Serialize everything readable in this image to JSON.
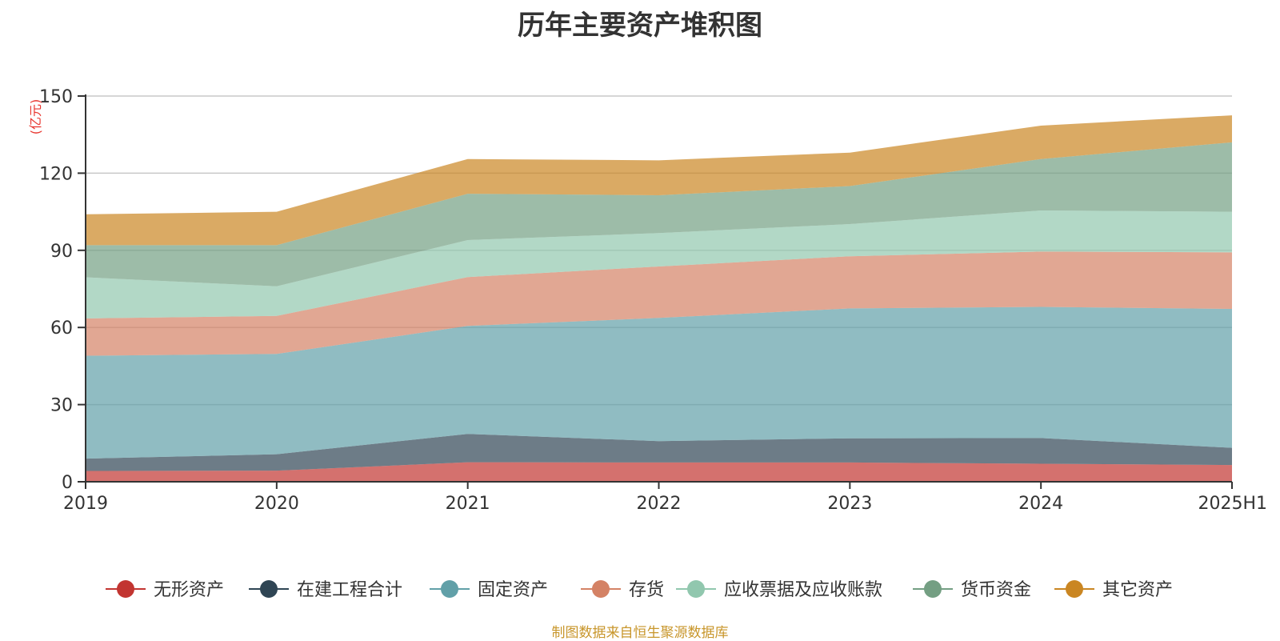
{
  "chart_data": {
    "type": "area",
    "stacked": true,
    "title": "历年主要资产堆积图",
    "ylabel": "(亿元)",
    "ylim": [
      0,
      150
    ],
    "yticks": [
      0,
      30,
      60,
      90,
      120,
      150
    ],
    "grid": true,
    "legend_position": "bottom",
    "categories": [
      "2019",
      "2020",
      "2021",
      "2022",
      "2023",
      "2024",
      "2025H1"
    ],
    "series": [
      {
        "name": "无形资产",
        "color": "#c23531",
        "values": [
          4.2,
          4.3,
          7.6,
          7.5,
          7.5,
          7.0,
          6.5
        ]
      },
      {
        "name": "在建工程合计",
        "color": "#2f4554",
        "values": [
          4.8,
          6.4,
          11.0,
          8.3,
          9.4,
          10.0,
          6.7
        ]
      },
      {
        "name": "固定资产",
        "color": "#61a0a8",
        "values": [
          40.0,
          39.0,
          42.0,
          47.9,
          50.5,
          51.0,
          54.0
        ]
      },
      {
        "name": "存货",
        "color": "#d48265",
        "values": [
          14.5,
          14.8,
          19.0,
          20.0,
          20.3,
          21.5,
          22.0
        ]
      },
      {
        "name": "应收票据及应收账款",
        "color": "#91c7ae",
        "values": [
          16.0,
          11.5,
          14.4,
          13.0,
          12.5,
          16.0,
          15.8
        ]
      },
      {
        "name": "货币资金",
        "color": "#749f83",
        "values": [
          12.5,
          16.0,
          18.0,
          14.7,
          14.8,
          20.0,
          27.0
        ]
      },
      {
        "name": "其它资产",
        "color": "#ca8622",
        "values": [
          12.0,
          13.0,
          13.5,
          13.6,
          13.0,
          13.0,
          10.5
        ]
      }
    ],
    "source_note": "制图数据来自恒生聚源数据库"
  }
}
